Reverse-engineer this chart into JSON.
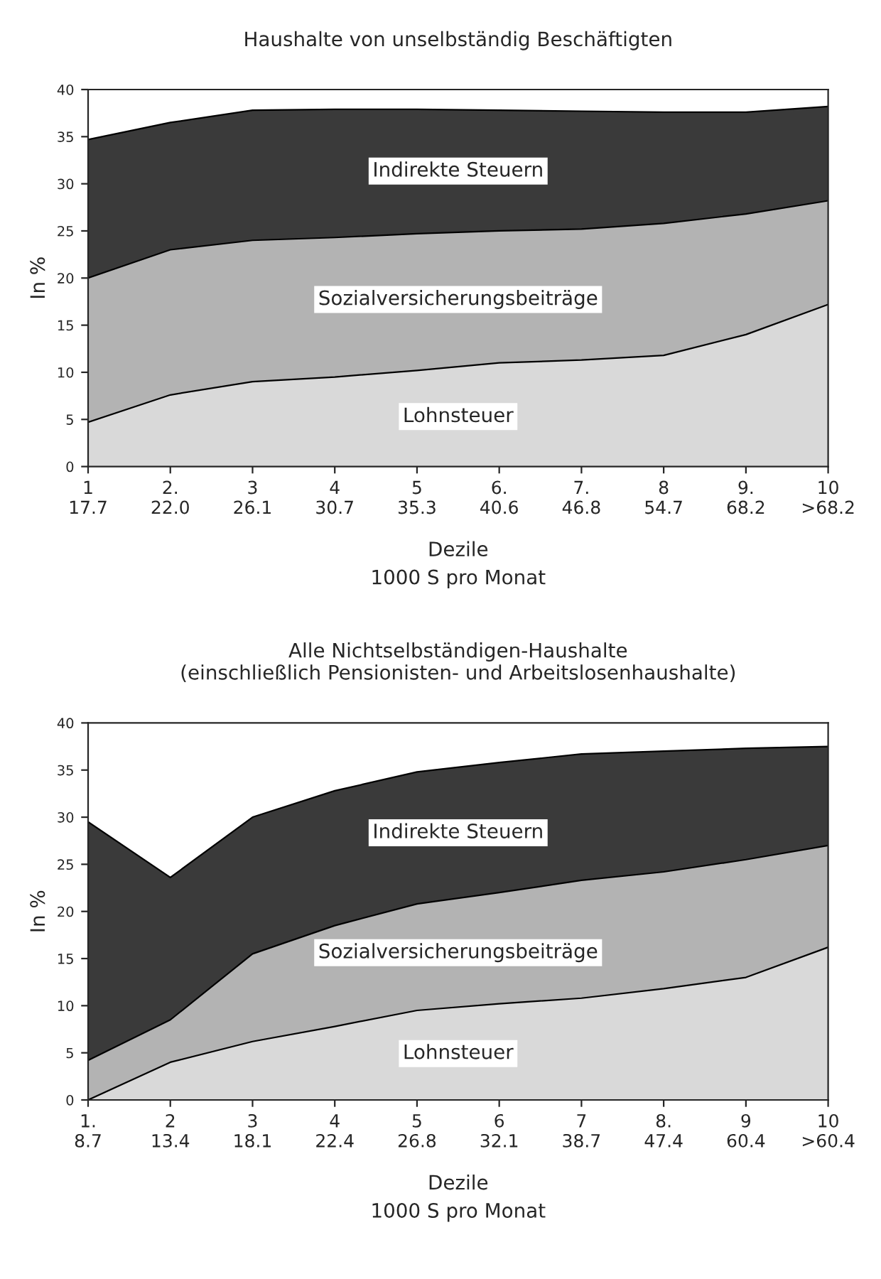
{
  "chart_data": [
    {
      "type": "area",
      "stacked": true,
      "title": "Haushalte von unselbständig Beschäftigten",
      "xlabel": "Dezile\n1000 S pro Monat",
      "ylabel": "In %",
      "categories": [
        "1\n17.7",
        "2.\n22.0",
        "3\n26.1",
        "4\n30.7",
        "5\n35.3",
        "6.\n40.6",
        "7.\n46.8",
        "8\n54.7",
        "9.\n68.2",
        "10\n>68.2"
      ],
      "series": [
        {
          "name": "Lohnsteuer",
          "color": "#d9d9d9",
          "values": [
            4.7,
            7.6,
            9.0,
            9.5,
            10.2,
            11.0,
            11.3,
            11.8,
            14.0,
            17.2
          ]
        },
        {
          "name": "Sozialversicherungsbeiträge",
          "color": "#b3b3b3",
          "values": [
            15.3,
            15.4,
            15.0,
            14.8,
            14.5,
            14.0,
            13.9,
            14.0,
            12.8,
            11.0
          ]
        },
        {
          "name": "Indirekte Steuern",
          "color": "#3a3a3a",
          "values": [
            14.7,
            13.5,
            13.8,
            13.6,
            13.2,
            12.8,
            12.5,
            11.8,
            10.8,
            10.0
          ]
        }
      ],
      "ylim": [
        0,
        40
      ],
      "yticks": [
        0,
        5,
        10,
        15,
        20,
        25,
        30,
        35,
        40
      ],
      "grid": false,
      "legend": false
    },
    {
      "type": "area",
      "stacked": true,
      "title": "Alle Nichtselbständigen-Haushalte\n(einschließlich Pensionisten- und Arbeitslosenhaushalte)",
      "xlabel": "Dezile\n1000 S pro Monat",
      "ylabel": "In %",
      "categories": [
        "1.\n8.7",
        "2\n13.4",
        "3\n18.1",
        "4\n22.4",
        "5\n26.8",
        "6\n32.1",
        "7\n38.7",
        "8.\n47.4",
        "9\n60.4",
        "10\n>60.4"
      ],
      "series": [
        {
          "name": "Lohnsteuer",
          "color": "#d9d9d9",
          "values": [
            0,
            4.0,
            6.2,
            7.8,
            9.5,
            10.2,
            10.8,
            11.8,
            13.0,
            16.2
          ]
        },
        {
          "name": "Sozialversicherungsbeiträge",
          "color": "#b3b3b3",
          "values": [
            4.2,
            4.5,
            9.3,
            10.7,
            11.3,
            11.8,
            12.5,
            12.4,
            12.5,
            10.8
          ]
        },
        {
          "name": "Indirekte Steuern",
          "color": "#3a3a3a",
          "values": [
            25.3,
            15.1,
            14.5,
            14.3,
            14.0,
            13.8,
            13.4,
            12.8,
            11.8,
            10.5
          ]
        }
      ],
      "ylim": [
        0,
        40
      ],
      "yticks": [
        0,
        5,
        10,
        15,
        20,
        25,
        30,
        35,
        40
      ],
      "grid": false,
      "legend": false
    }
  ]
}
